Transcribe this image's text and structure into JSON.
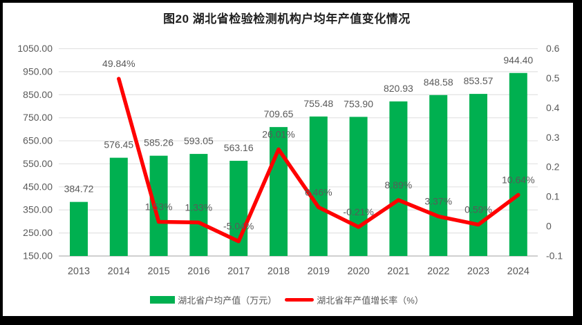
{
  "title": "图20 湖北省检验检测机构户均年产值变化情况",
  "legend": {
    "bar_label": "湖北省户均产值（万元）",
    "line_label": "湖北省年产值增长率（%）"
  },
  "colors": {
    "bar": "#00B050",
    "line": "#FF0000",
    "axis_text": "#595959",
    "label_text": "#595959",
    "grid": "#E2E2E2",
    "axis_line": "#BFBFBF",
    "title_text": "#1F1F1F",
    "frame": "#000000"
  },
  "chart_data": {
    "type": "combo-bar-line",
    "title": "图20 湖北省检验检测机构户均年产值变化情况",
    "categories": [
      "2013",
      "2014",
      "2015",
      "2016",
      "2017",
      "2018",
      "2019",
      "2020",
      "2021",
      "2022",
      "2023",
      "2024"
    ],
    "series": [
      {
        "name": "湖北省户均产值（万元）",
        "type": "bar",
        "axis": "left",
        "values": [
          384.72,
          576.45,
          585.26,
          593.05,
          563.16,
          709.65,
          755.48,
          753.9,
          820.93,
          848.58,
          853.57,
          944.4
        ],
        "labels": [
          "384.72",
          "576.45",
          "585.26",
          "593.05",
          "563.16",
          "709.65",
          "755.48",
          "753.90",
          "820.93",
          "848.58",
          "853.57",
          "944.40"
        ]
      },
      {
        "name": "湖北省年产值增长率（%）",
        "type": "line",
        "axis": "right",
        "values": [
          null,
          0.4984,
          0.0153,
          0.0133,
          -0.0504,
          0.2601,
          0.0646,
          -0.0021,
          0.0889,
          0.0337,
          0.0059,
          0.1064
        ],
        "labels": [
          "",
          "49.84%",
          "1.53%",
          "1.33%",
          "-5.04%",
          "26.01%",
          "6.46%",
          "-0.21%",
          "8.89%",
          "3.37%",
          "0.59%",
          "10.64%"
        ]
      }
    ],
    "left_axis": {
      "min": 150,
      "max": 1050,
      "step": 100,
      "ticks": [
        "1050.00",
        "950.00",
        "850.00",
        "750.00",
        "650.00",
        "550.00",
        "450.00",
        "350.00",
        "250.00",
        "150.00"
      ]
    },
    "right_axis": {
      "min": -0.1,
      "max": 0.6,
      "step": 0.1,
      "ticks": [
        "0.6",
        "0.5",
        "0.4",
        "0.3",
        "0.2",
        "0.1",
        "0",
        "-0.1"
      ]
    },
    "grid": true,
    "legend_position": "bottom"
  }
}
